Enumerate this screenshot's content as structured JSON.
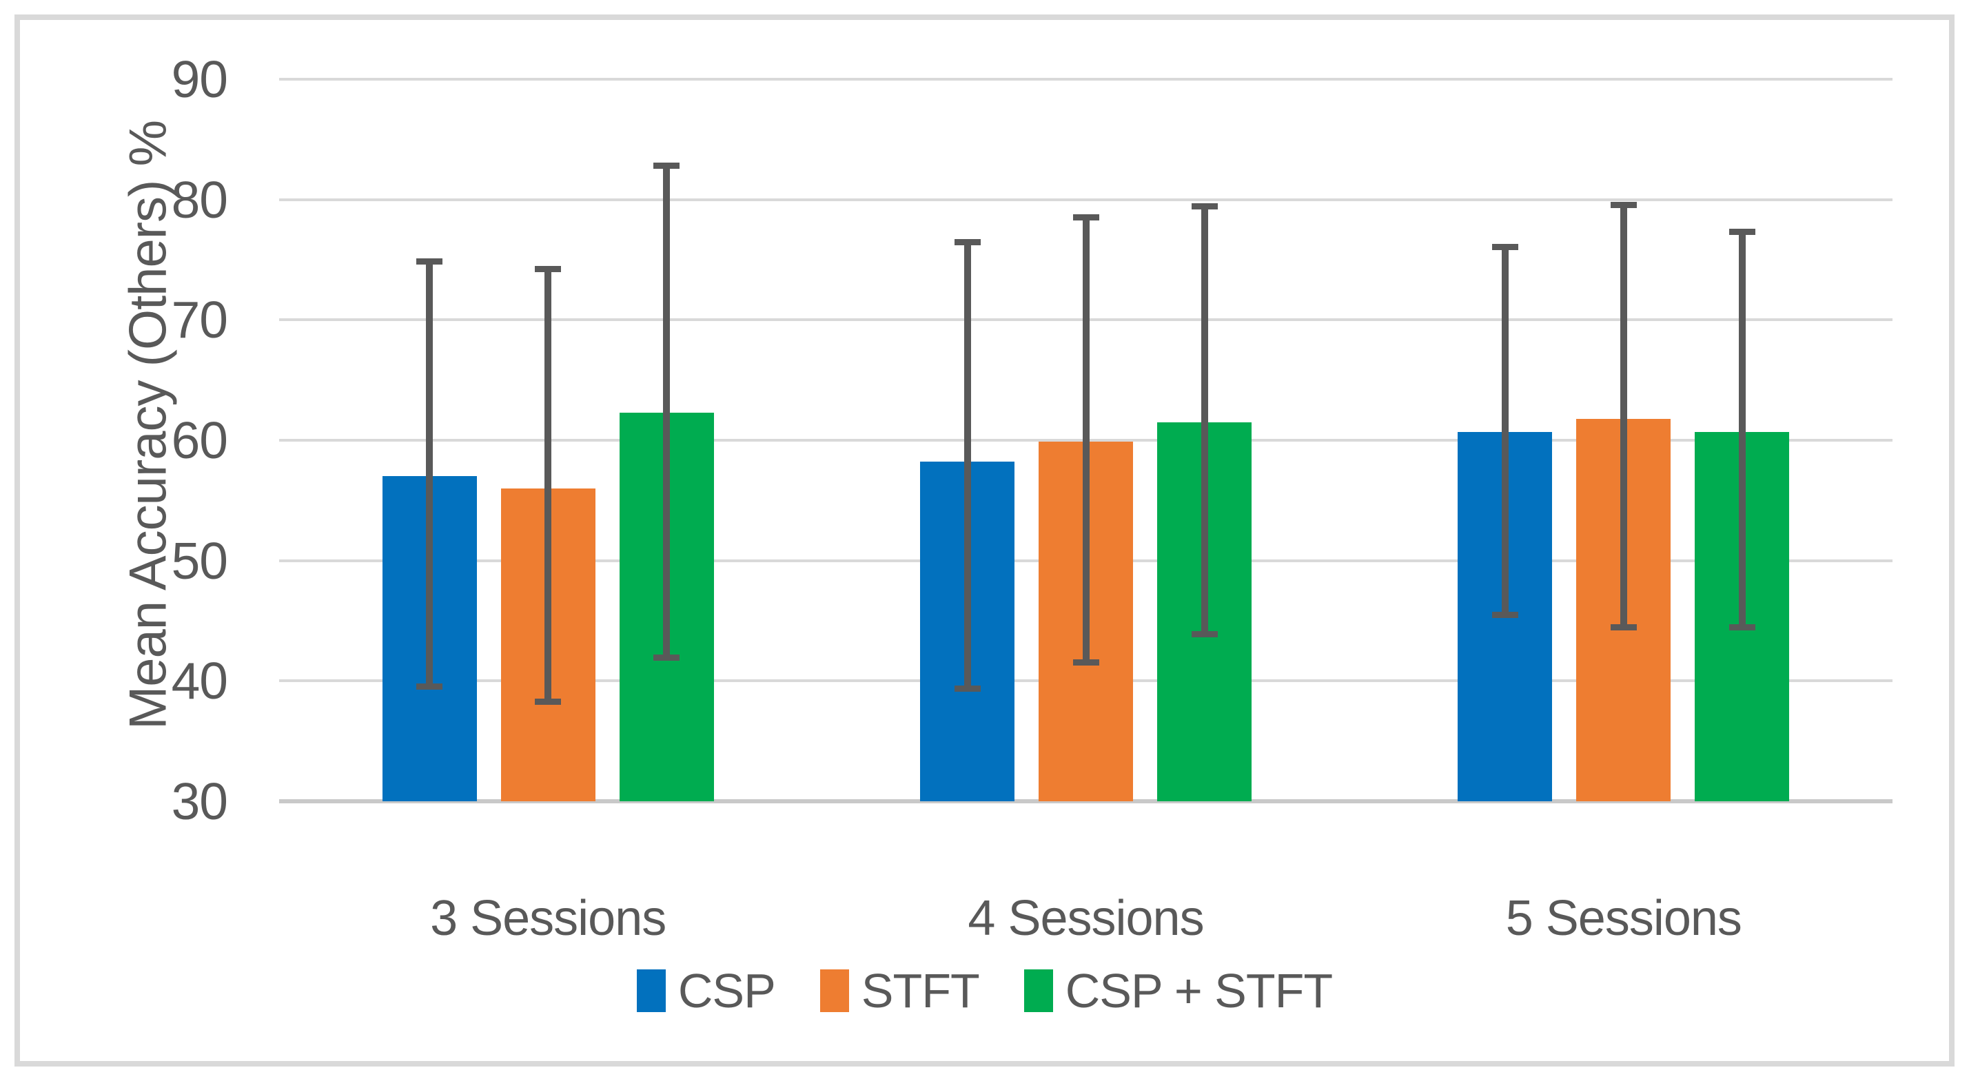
{
  "chart_data": {
    "type": "bar",
    "title": "",
    "xlabel": "",
    "ylabel": "Mean Accuracy (Others) %",
    "categories": [
      "3 Sessions",
      "4 Sessions",
      "5 Sessions"
    ],
    "series": [
      {
        "name": "CSP",
        "color": "#0271BE",
        "values": [
          57.0,
          58.2,
          60.7
        ],
        "error_low": [
          39.3,
          39.1,
          45.2
        ],
        "error_high": [
          75.1,
          76.7,
          76.3
        ]
      },
      {
        "name": "STFT",
        "color": "#EE7D31",
        "values": [
          56.0,
          59.9,
          61.8
        ],
        "error_low": [
          38.0,
          41.3,
          44.2
        ],
        "error_high": [
          74.5,
          78.8,
          79.8
        ]
      },
      {
        "name": "CSP + STFT",
        "color": "#00AC50",
        "values": [
          62.3,
          61.5,
          60.7
        ],
        "error_low": [
          41.7,
          43.6,
          44.2
        ],
        "error_high": [
          83.1,
          79.7,
          77.6
        ]
      }
    ],
    "ylim": [
      30,
      90
    ],
    "ytick_step": 10,
    "yticks": [
      90,
      80,
      70,
      60,
      50,
      40,
      30
    ],
    "grid": true,
    "legend_position": "bottom",
    "error_bar_color": "#595959",
    "gridline_color": "#D9D9D9",
    "axis_line_color": "#C9C9C9",
    "text_color": "#595959",
    "frame_color": "#D9D9D9"
  }
}
